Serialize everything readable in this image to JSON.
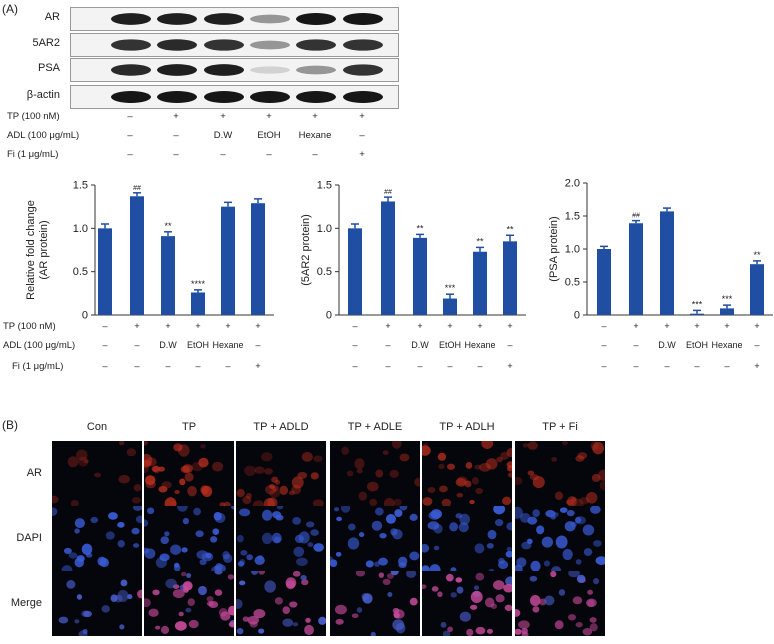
{
  "panel_a_label": "(A)",
  "panel_b_label": "(B)",
  "blots": [
    {
      "label": "AR",
      "intensity": [
        0.95,
        0.95,
        0.95,
        0.35,
        1.0,
        1.0
      ]
    },
    {
      "label": "5AR2",
      "intensity": [
        0.85,
        0.9,
        0.85,
        0.35,
        0.85,
        0.85
      ]
    },
    {
      "label": "PSA",
      "intensity": [
        0.9,
        0.95,
        0.95,
        0.05,
        0.35,
        0.85
      ]
    },
    {
      "label": "β-actin",
      "intensity": [
        1.0,
        1.0,
        1.0,
        1.0,
        1.0,
        1.0
      ]
    }
  ],
  "conditions": [
    {
      "label": "TP (100 nM)",
      "values": [
        "–",
        "+",
        "+",
        "+",
        "+",
        "+"
      ]
    },
    {
      "label": "ADL (100 μg/mL)",
      "values": [
        "–",
        "–",
        "D.W",
        "EtOH",
        "Hexane",
        "–"
      ]
    },
    {
      "label": "Fi (1 μg/mL)",
      "values": [
        "–",
        "–",
        "–",
        "–",
        "–",
        "+"
      ]
    }
  ],
  "colors": {
    "bar": "#1f4ea3",
    "red_stain": "#c0301f",
    "blue_stain": "#3a5cd6"
  },
  "chart_data": [
    {
      "type": "bar",
      "ylabel": "Relative fold change\n(AR protein)",
      "ylim": [
        0,
        1.5
      ],
      "yticks": [
        "0",
        "0.5",
        "1.0",
        "1.5"
      ],
      "values": [
        1.0,
        1.37,
        0.91,
        0.26,
        1.25,
        1.29
      ],
      "errors": [
        0.05,
        0.04,
        0.05,
        0.03,
        0.05,
        0.05
      ],
      "annotations": [
        "",
        "##",
        "**",
        "****",
        "",
        ""
      ]
    },
    {
      "type": "bar",
      "ylabel": "(5AR2 protein)",
      "ylim": [
        0,
        1.5
      ],
      "yticks": [
        "0",
        "0.5",
        "1.0",
        "1.5"
      ],
      "values": [
        1.0,
        1.31,
        0.89,
        0.19,
        0.73,
        0.85
      ],
      "errors": [
        0.05,
        0.05,
        0.04,
        0.05,
        0.05,
        0.07
      ],
      "annotations": [
        "",
        "##",
        "**",
        "***",
        "**",
        "**"
      ]
    },
    {
      "type": "bar",
      "ylabel": "(PSA protein)",
      "ylim": [
        0,
        2.0
      ],
      "yticks": [
        "0",
        "0.5",
        "1.0",
        "1.5",
        "2.0"
      ],
      "values": [
        1.0,
        1.39,
        1.57,
        0.02,
        0.1,
        0.77
      ],
      "errors": [
        0.04,
        0.04,
        0.05,
        0.05,
        0.05,
        0.05
      ],
      "annotations": [
        "",
        "##",
        "",
        "***",
        "***",
        "**"
      ]
    }
  ],
  "micro": {
    "headers": [
      "Con",
      "TP",
      "TP + ADLD",
      "TP + ADLE",
      "TP + ADLH",
      "TP + Fi"
    ],
    "rows": [
      {
        "label": "AR",
        "stain": "red",
        "level": [
          0.15,
          0.85,
          0.65,
          0.25,
          0.75,
          0.55
        ]
      },
      {
        "label": "DAPI",
        "stain": "blue",
        "level": [
          0.5,
          0.85,
          0.6,
          0.6,
          0.6,
          0.9
        ]
      },
      {
        "label": "Merge",
        "stain": "merge",
        "level": [
          0.3,
          0.85,
          0.6,
          0.45,
          0.7,
          0.7
        ]
      }
    ]
  }
}
